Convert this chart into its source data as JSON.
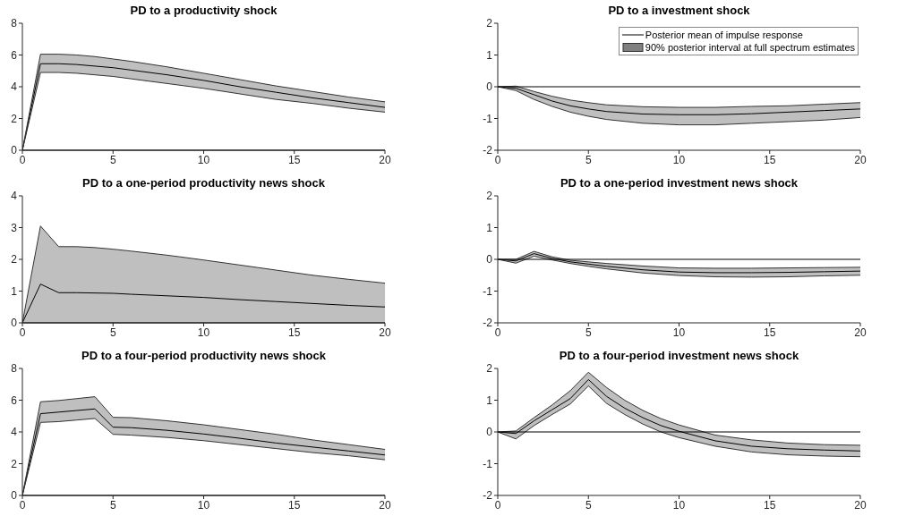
{
  "chart_data": [
    {
      "type": "line",
      "title": "PD to a productivity shock",
      "x": [
        0,
        1,
        2,
        3,
        4,
        5,
        6,
        8,
        10,
        12,
        14,
        16,
        18,
        20
      ],
      "xlim": [
        0,
        20
      ],
      "xticks": [
        0,
        5,
        10,
        15,
        20
      ],
      "ylim": [
        0,
        8
      ],
      "yticks": [
        0,
        2,
        4,
        6,
        8
      ],
      "ref_lines": [
        {
          "axis": "y",
          "value": 0
        }
      ],
      "series": [
        {
          "color": "#000000",
          "values": [
            0,
            5.45,
            5.45,
            5.4,
            5.3,
            5.2,
            5.05,
            4.75,
            4.4,
            4.0,
            3.65,
            3.3,
            3.0,
            2.7
          ],
          "lower": [
            0,
            4.9,
            4.9,
            4.85,
            4.75,
            4.65,
            4.5,
            4.2,
            3.9,
            3.55,
            3.2,
            2.95,
            2.65,
            2.4
          ],
          "upper": [
            0,
            6.05,
            6.05,
            6.0,
            5.9,
            5.75,
            5.6,
            5.25,
            4.85,
            4.45,
            4.05,
            3.7,
            3.35,
            3.05
          ]
        },
        {
          "color": "#333333",
          "values": [
            0,
            4.9,
            4.9,
            4.85,
            4.75,
            4.65,
            4.5,
            4.2,
            3.9,
            3.55,
            3.2,
            2.95,
            2.65,
            2.4
          ]
        },
        {
          "color": "#333333",
          "values": [
            0,
            6.05,
            6.05,
            6.0,
            5.9,
            5.75,
            5.6,
            5.25,
            4.85,
            4.45,
            4.05,
            3.7,
            3.35,
            3.05
          ]
        }
      ]
    },
    {
      "type": "line",
      "title": "PD to a investment shock",
      "x": [
        0,
        1,
        2,
        3,
        4,
        5,
        6,
        8,
        10,
        12,
        14,
        16,
        18,
        20
      ],
      "xlim": [
        0,
        20
      ],
      "xticks": [
        0,
        5,
        10,
        15,
        20
      ],
      "ylim": [
        -2,
        2
      ],
      "yticks": [
        -2,
        -1,
        0,
        1,
        2
      ],
      "ref_lines": [
        {
          "axis": "y",
          "value": 0
        }
      ],
      "legend": "top right",
      "annotations": [
        "90% posterior interval at full spectrum estimates"
      ],
      "series": [
        {
          "name": "Posterior mean of impulse response",
          "color": "#000000",
          "values": [
            0,
            -0.05,
            -0.25,
            -0.45,
            -0.6,
            -0.7,
            -0.78,
            -0.86,
            -0.88,
            -0.88,
            -0.85,
            -0.8,
            -0.75,
            -0.7
          ],
          "lower": [
            0,
            -0.12,
            -0.4,
            -0.62,
            -0.8,
            -0.93,
            -1.03,
            -1.15,
            -1.2,
            -1.2,
            -1.15,
            -1.1,
            -1.05,
            -0.97
          ],
          "upper": [
            0,
            0.02,
            -0.15,
            -0.3,
            -0.42,
            -0.5,
            -0.57,
            -0.63,
            -0.65,
            -0.65,
            -0.62,
            -0.6,
            -0.55,
            -0.5
          ]
        },
        {
          "color": "#333333",
          "values": [
            0,
            -0.12,
            -0.4,
            -0.62,
            -0.8,
            -0.93,
            -1.03,
            -1.15,
            -1.2,
            -1.2,
            -1.15,
            -1.1,
            -1.05,
            -0.97
          ]
        },
        {
          "color": "#333333",
          "values": [
            0,
            0.02,
            -0.15,
            -0.3,
            -0.42,
            -0.5,
            -0.57,
            -0.63,
            -0.65,
            -0.65,
            -0.62,
            -0.6,
            -0.55,
            -0.5
          ]
        }
      ]
    },
    {
      "type": "line",
      "title": "PD to a one-period productivity news shock",
      "x": [
        0,
        1,
        2,
        3,
        4,
        5,
        6,
        8,
        10,
        12,
        14,
        16,
        18,
        20
      ],
      "xlim": [
        0,
        20
      ],
      "xticks": [
        0,
        5,
        10,
        15,
        20
      ],
      "ylim": [
        0,
        4
      ],
      "yticks": [
        0,
        1,
        2,
        3,
        4
      ],
      "ref_lines": [
        {
          "axis": "y",
          "value": 0
        }
      ],
      "series": [
        {
          "color": "#000000",
          "values": [
            0,
            1.22,
            0.95,
            0.95,
            0.94,
            0.93,
            0.9,
            0.85,
            0.8,
            0.73,
            0.67,
            0.61,
            0.55,
            0.5
          ],
          "lower": [
            0,
            0,
            0,
            0,
            0,
            0,
            0,
            0,
            0,
            0,
            0,
            0,
            0,
            0
          ],
          "upper": [
            0,
            3.05,
            2.4,
            2.4,
            2.37,
            2.32,
            2.26,
            2.13,
            1.98,
            1.82,
            1.66,
            1.5,
            1.37,
            1.25
          ]
        },
        {
          "color": "#333333",
          "values": [
            0,
            3.05,
            2.4,
            2.4,
            2.37,
            2.32,
            2.26,
            2.13,
            1.98,
            1.82,
            1.66,
            1.5,
            1.37,
            1.25
          ]
        }
      ]
    },
    {
      "type": "line",
      "title": "PD to a one-period investment news shock",
      "x": [
        0,
        1,
        2,
        3,
        4,
        5,
        6,
        8,
        10,
        12,
        14,
        16,
        18,
        20
      ],
      "xlim": [
        0,
        20
      ],
      "xticks": [
        0,
        5,
        10,
        15,
        20
      ],
      "ylim": [
        -2,
        2
      ],
      "yticks": [
        -2,
        -1,
        0,
        1,
        2
      ],
      "ref_lines": [
        {
          "axis": "y",
          "value": 0
        }
      ],
      "series": [
        {
          "color": "#000000",
          "values": [
            0,
            -0.05,
            0.18,
            0.03,
            -0.08,
            -0.15,
            -0.22,
            -0.33,
            -0.4,
            -0.42,
            -0.42,
            -0.41,
            -0.39,
            -0.37
          ],
          "lower": [
            0,
            -0.12,
            0.1,
            -0.02,
            -0.13,
            -0.22,
            -0.3,
            -0.43,
            -0.51,
            -0.55,
            -0.56,
            -0.55,
            -0.52,
            -0.5
          ],
          "upper": [
            0,
            0.0,
            0.25,
            0.08,
            -0.03,
            -0.08,
            -0.13,
            -0.21,
            -0.27,
            -0.28,
            -0.28,
            -0.27,
            -0.26,
            -0.25
          ]
        },
        {
          "color": "#333333",
          "values": [
            0,
            -0.12,
            0.1,
            -0.02,
            -0.13,
            -0.22,
            -0.3,
            -0.43,
            -0.51,
            -0.55,
            -0.56,
            -0.55,
            -0.52,
            -0.5
          ]
        },
        {
          "color": "#333333",
          "values": [
            0,
            0.0,
            0.25,
            0.08,
            -0.03,
            -0.08,
            -0.13,
            -0.21,
            -0.27,
            -0.28,
            -0.28,
            -0.27,
            -0.26,
            -0.25
          ]
        }
      ]
    },
    {
      "type": "line",
      "title": "PD to a four-period productivity news shock",
      "x": [
        0,
        1,
        2,
        3,
        4,
        5,
        6,
        8,
        10,
        12,
        14,
        16,
        18,
        20
      ],
      "xlim": [
        0,
        20
      ],
      "xticks": [
        0,
        5,
        10,
        15,
        20
      ],
      "ylim": [
        0,
        8
      ],
      "yticks": [
        0,
        2,
        4,
        6,
        8
      ],
      "ref_lines": [
        {
          "axis": "y",
          "value": 0
        }
      ],
      "series": [
        {
          "color": "#000000",
          "values": [
            0,
            5.15,
            5.25,
            5.35,
            5.45,
            4.3,
            4.27,
            4.1,
            3.87,
            3.6,
            3.3,
            3.05,
            2.8,
            2.55
          ],
          "lower": [
            0,
            4.6,
            4.65,
            4.75,
            4.85,
            3.85,
            3.8,
            3.65,
            3.45,
            3.2,
            2.95,
            2.7,
            2.5,
            2.25
          ],
          "upper": [
            0,
            5.9,
            5.98,
            6.1,
            6.22,
            4.92,
            4.9,
            4.7,
            4.45,
            4.15,
            3.85,
            3.5,
            3.2,
            2.9
          ]
        },
        {
          "color": "#333333",
          "values": [
            0,
            4.6,
            4.65,
            4.75,
            4.85,
            3.85,
            3.8,
            3.65,
            3.45,
            3.2,
            2.95,
            2.7,
            2.5,
            2.25
          ]
        },
        {
          "color": "#333333",
          "values": [
            0,
            5.9,
            5.98,
            6.1,
            6.22,
            4.92,
            4.9,
            4.7,
            4.45,
            4.15,
            3.85,
            3.5,
            3.2,
            2.9
          ]
        }
      ]
    },
    {
      "type": "line",
      "title": "PD to a four-period investment news shock",
      "x": [
        0,
        1,
        2,
        3,
        4,
        5,
        6,
        7,
        8,
        9,
        10,
        12,
        14,
        16,
        18,
        20
      ],
      "xlim": [
        0,
        20
      ],
      "xticks": [
        0,
        5,
        10,
        15,
        20
      ],
      "ylim": [
        -2,
        2
      ],
      "yticks": [
        -2,
        -1,
        0,
        1,
        2
      ],
      "ref_lines": [
        {
          "axis": "y",
          "value": 0
        }
      ],
      "series": [
        {
          "color": "#000000",
          "values": [
            0,
            -0.05,
            0.35,
            0.7,
            1.05,
            1.65,
            1.12,
            0.75,
            0.45,
            0.2,
            0.02,
            -0.28,
            -0.45,
            -0.53,
            -0.57,
            -0.6
          ],
          "lower": [
            0,
            -0.22,
            0.2,
            0.55,
            0.88,
            1.45,
            0.9,
            0.55,
            0.25,
            0.0,
            -0.18,
            -0.45,
            -0.63,
            -0.72,
            -0.76,
            -0.78
          ],
          "upper": [
            0,
            0.03,
            0.45,
            0.85,
            1.3,
            1.88,
            1.4,
            1.0,
            0.68,
            0.42,
            0.22,
            -0.1,
            -0.25,
            -0.35,
            -0.4,
            -0.42
          ]
        },
        {
          "color": "#333333",
          "values": [
            0,
            -0.22,
            0.2,
            0.55,
            0.88,
            1.45,
            0.9,
            0.55,
            0.25,
            0.0,
            -0.18,
            -0.45,
            -0.63,
            -0.72,
            -0.76,
            -0.78
          ]
        },
        {
          "color": "#333333",
          "values": [
            0,
            0.03,
            0.45,
            0.85,
            1.3,
            1.88,
            1.4,
            1.0,
            0.68,
            0.42,
            0.22,
            -0.1,
            -0.25,
            -0.35,
            -0.4,
            -0.42
          ]
        }
      ]
    }
  ]
}
